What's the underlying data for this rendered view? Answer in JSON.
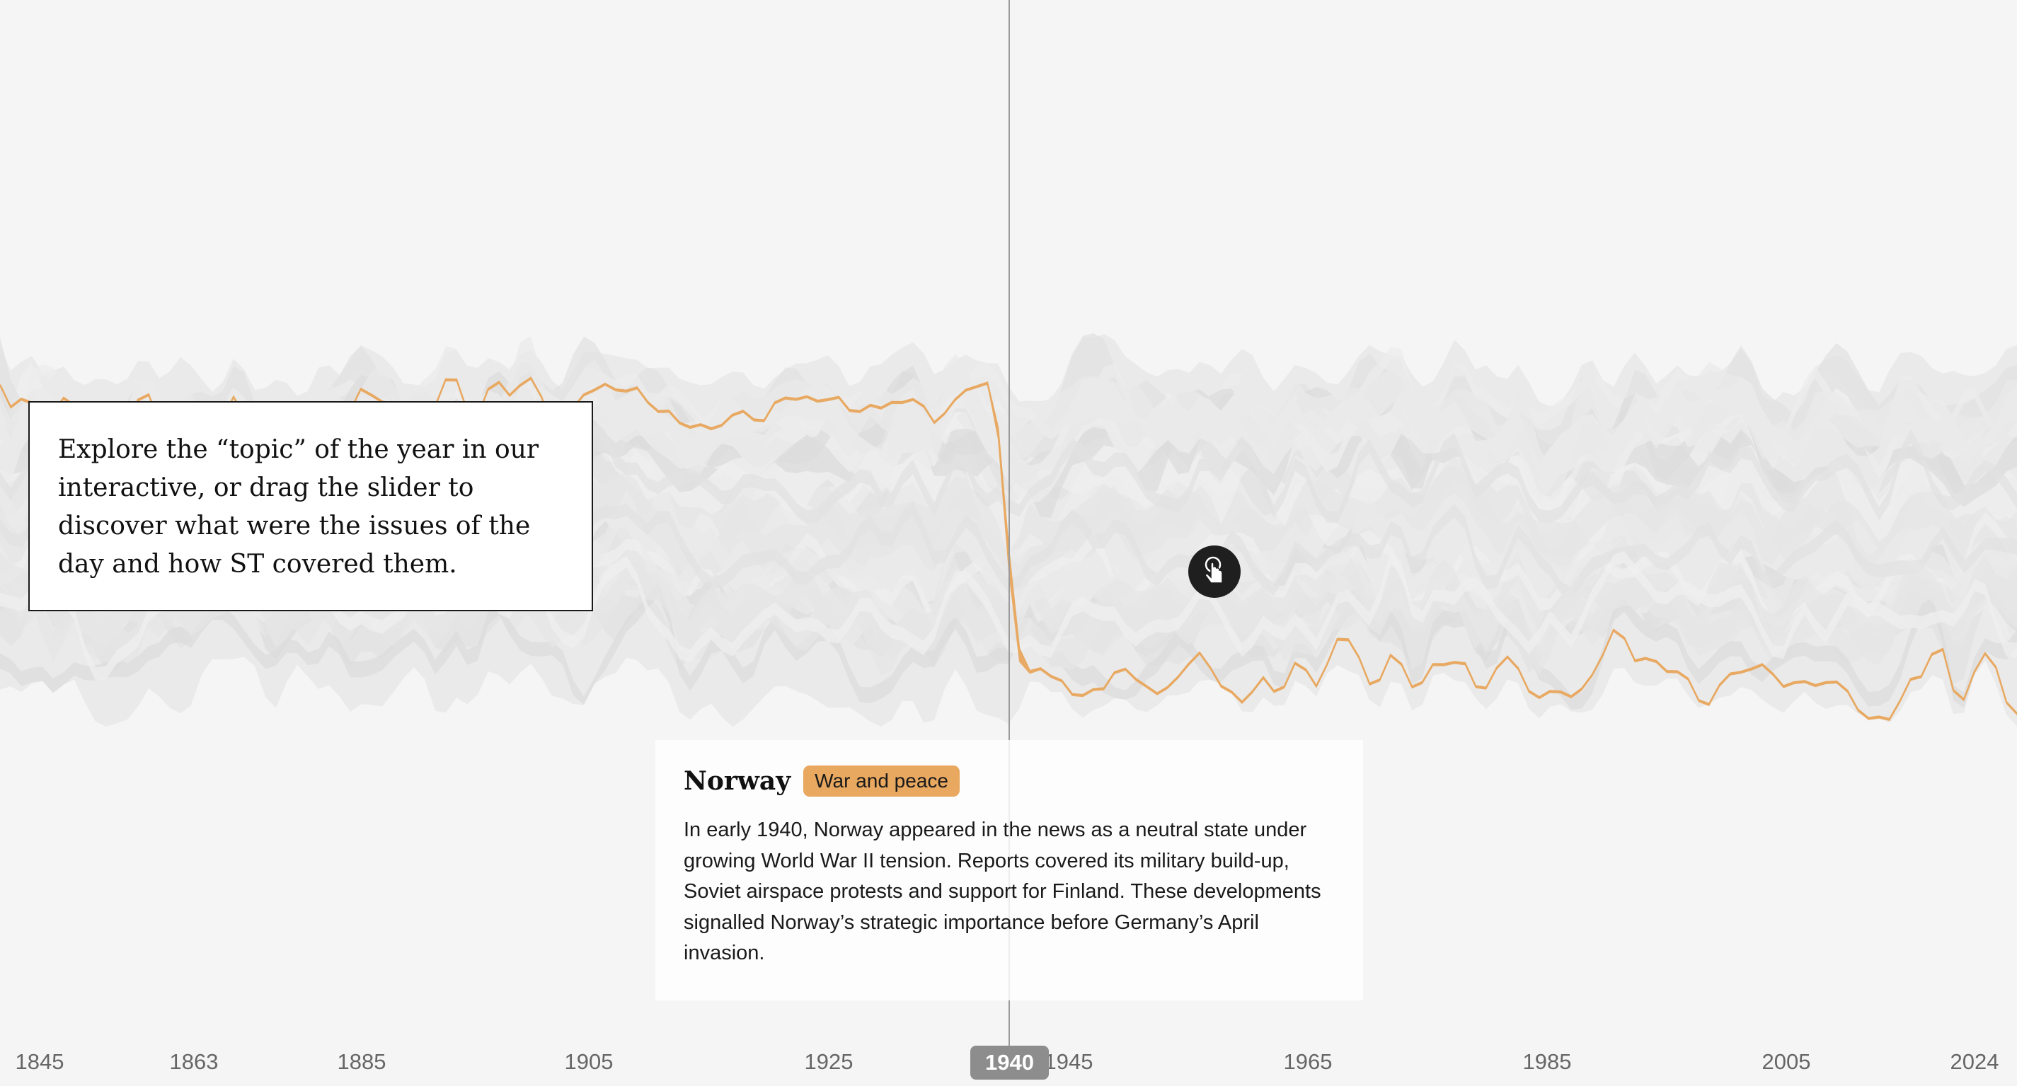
{
  "intro": {
    "text": "Explore the “topic” of the year in our interactive, or drag the slider to discover what were the issues of the day and how ST covered them."
  },
  "card": {
    "title": "Norway",
    "tag": "War and peace",
    "body": "In early 1940, Norway appeared in the news as a neutral state under growing World War II tension. Reports covered its military build-up, Soviet airspace protests and support for Finland. These developments signalled Norway’s strategic importance before Germany’s April invasion."
  },
  "slider": {
    "selected_year": "1940",
    "axis_labels": [
      "1845",
      "1863",
      "1885",
      "1905",
      "1925",
      "1945",
      "1965",
      "1985",
      "2005",
      "2024"
    ]
  },
  "icons": {
    "drag_hint": "hand-pointer-icon"
  },
  "colors": {
    "highlight": "#e8a860",
    "stream_gray": "#dddddd",
    "background": "#f5f5f5",
    "year_handle": "#8d8d8d"
  }
}
